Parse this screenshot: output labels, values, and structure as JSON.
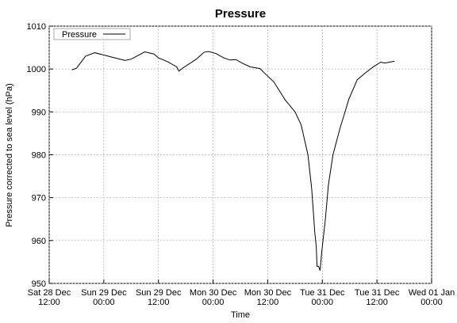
{
  "chart_data": {
    "type": "line",
    "title": "Pressure",
    "xlabel": "Time",
    "ylabel": "Pressure corrected to sea level (hPa)",
    "x": [
      "28 Dec 17:00",
      "28 Dec 18:00",
      "28 Dec 20:00",
      "28 Dec 22:00",
      "29 Dec 01:40",
      "29 Dec 04:40",
      "29 Dec 06:00",
      "29 Dec 09:00",
      "29 Dec 11:00",
      "29 Dec 12:00",
      "29 Dec 14:00",
      "29 Dec 16:00",
      "29 Dec 16:30",
      "29 Dec 17:10",
      "29 Dec 20:20",
      "29 Dec 22:00",
      "29 Dec 23:00",
      "30 Dec 00:40",
      "30 Dec 02:20",
      "30 Dec 03:40",
      "30 Dec 05:00",
      "30 Dec 06:20",
      "30 Dec 08:10",
      "30 Dec 10:20",
      "30 Dec 11:20",
      "30 Dec 13:20",
      "30 Dec 15:50",
      "30 Dec 18:00",
      "30 Dec 19:20",
      "30 Dec 20:50",
      "30 Dec 21:40",
      "30 Dec 22:20",
      "30 Dec 22:40",
      "30 Dec 22:50",
      "30 Dec 23:10",
      "30 Dec 23:30",
      "30 Dec 23:50",
      "31 Dec 00:40",
      "31 Dec 01:20",
      "31 Dec 02:20",
      "31 Dec 03:50",
      "31 Dec 05:50",
      "31 Dec 07:40",
      "31 Dec 09:20",
      "31 Dec 11:10",
      "31 Dec 12:50",
      "31 Dec 13:40",
      "31 Dec 15:50"
    ],
    "series": [
      {
        "name": "Pressure",
        "color": "#000000",
        "values": [
          999.8,
          1000.2,
          1003,
          1003.8,
          1002.8,
          1002,
          1002.3,
          1004,
          1003.5,
          1002.6,
          1001.7,
          1000.5,
          999.5,
          1000.1,
          1002.3,
          1003.9,
          1004.1,
          1003.6,
          1002.6,
          1002.1,
          1002.2,
          1001.4,
          1000.5,
          1000.1,
          999,
          997,
          992.8,
          990,
          987,
          980,
          972,
          962,
          958.5,
          954,
          954,
          953,
          957,
          965,
          973,
          980,
          986,
          993,
          997.5,
          999,
          1000.5,
          1001.6,
          1001.4,
          1001.8
        ]
      }
    ],
    "xlim": [
      "28 Dec 12:00",
      "01 Jan 00:00"
    ],
    "xticks": [
      {
        "value": "28 Dec 12:00",
        "label": "Sat 28 Dec 12:00"
      },
      {
        "value": "29 Dec 00:00",
        "label": "Sun 29 Dec 00:00"
      },
      {
        "value": "29 Dec 12:00",
        "label": "Sun 29 Dec 12:00"
      },
      {
        "value": "30 Dec 00:00",
        "label": "Mon 30 Dec 00:00"
      },
      {
        "value": "30 Dec 12:00",
        "label": "Mon 30 Dec 12:00"
      },
      {
        "value": "31 Dec 00:00",
        "label": "Tue 31 Dec 00:00"
      },
      {
        "value": "31 Dec 12:00",
        "label": "Tue 31 Dec 12:00"
      },
      {
        "value": "01 Jan 00:00",
        "label": "Wed 01 Jan 00:00"
      }
    ],
    "ylim": [
      950,
      1010
    ],
    "yticks": [
      950,
      960,
      970,
      980,
      990,
      1000,
      1010
    ],
    "grid": true,
    "legend": "upper left"
  }
}
